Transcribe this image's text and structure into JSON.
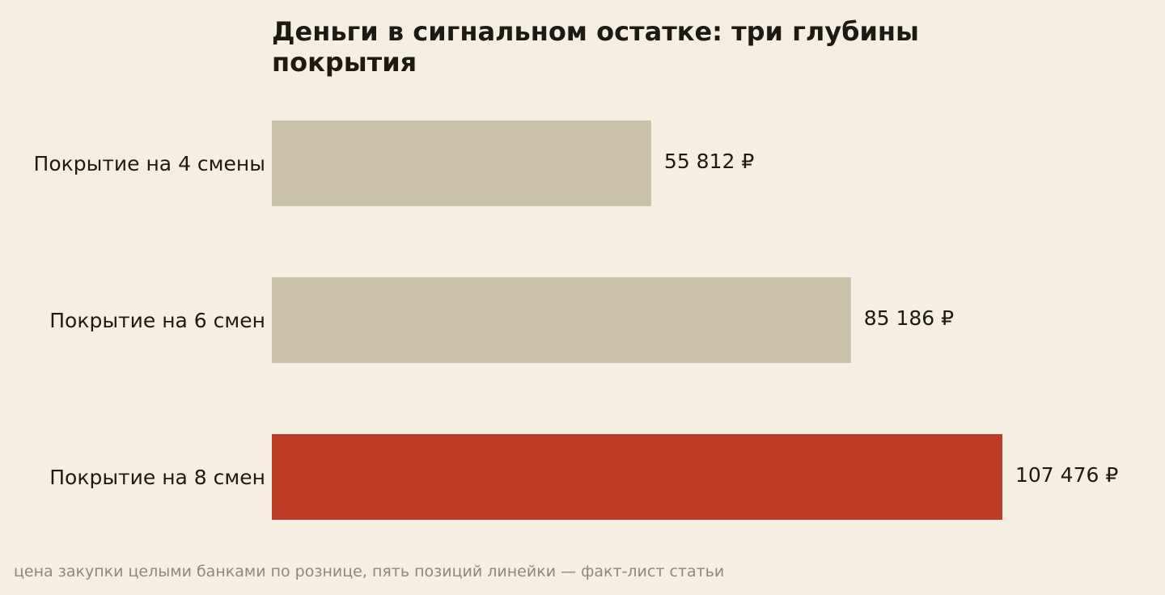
{
  "chart_data": {
    "type": "bar",
    "orientation": "horizontal",
    "title": "Деньги в сигнальном остатке: три глубины покрытия",
    "categories": [
      "Покрытие на 4 смены",
      "Покрытие на 6 смен",
      "Покрытие на 8 смен"
    ],
    "values": [
      55812,
      85186,
      107476
    ],
    "value_labels": [
      "55 812 ₽",
      "85 186 ₽",
      "107 476 ₽"
    ],
    "colors": [
      "#c9c0a8",
      "#c9c0a8",
      "#bc3c27"
    ],
    "highlight_index": 2,
    "unit": "₽",
    "xlim": [
      0,
      107476
    ],
    "grid": false,
    "legend": "none",
    "xlabel": "",
    "ylabel": ""
  },
  "footnote": "цена закупки целыми банками по рознице, пять позиций линейки — факт-лист статьи"
}
